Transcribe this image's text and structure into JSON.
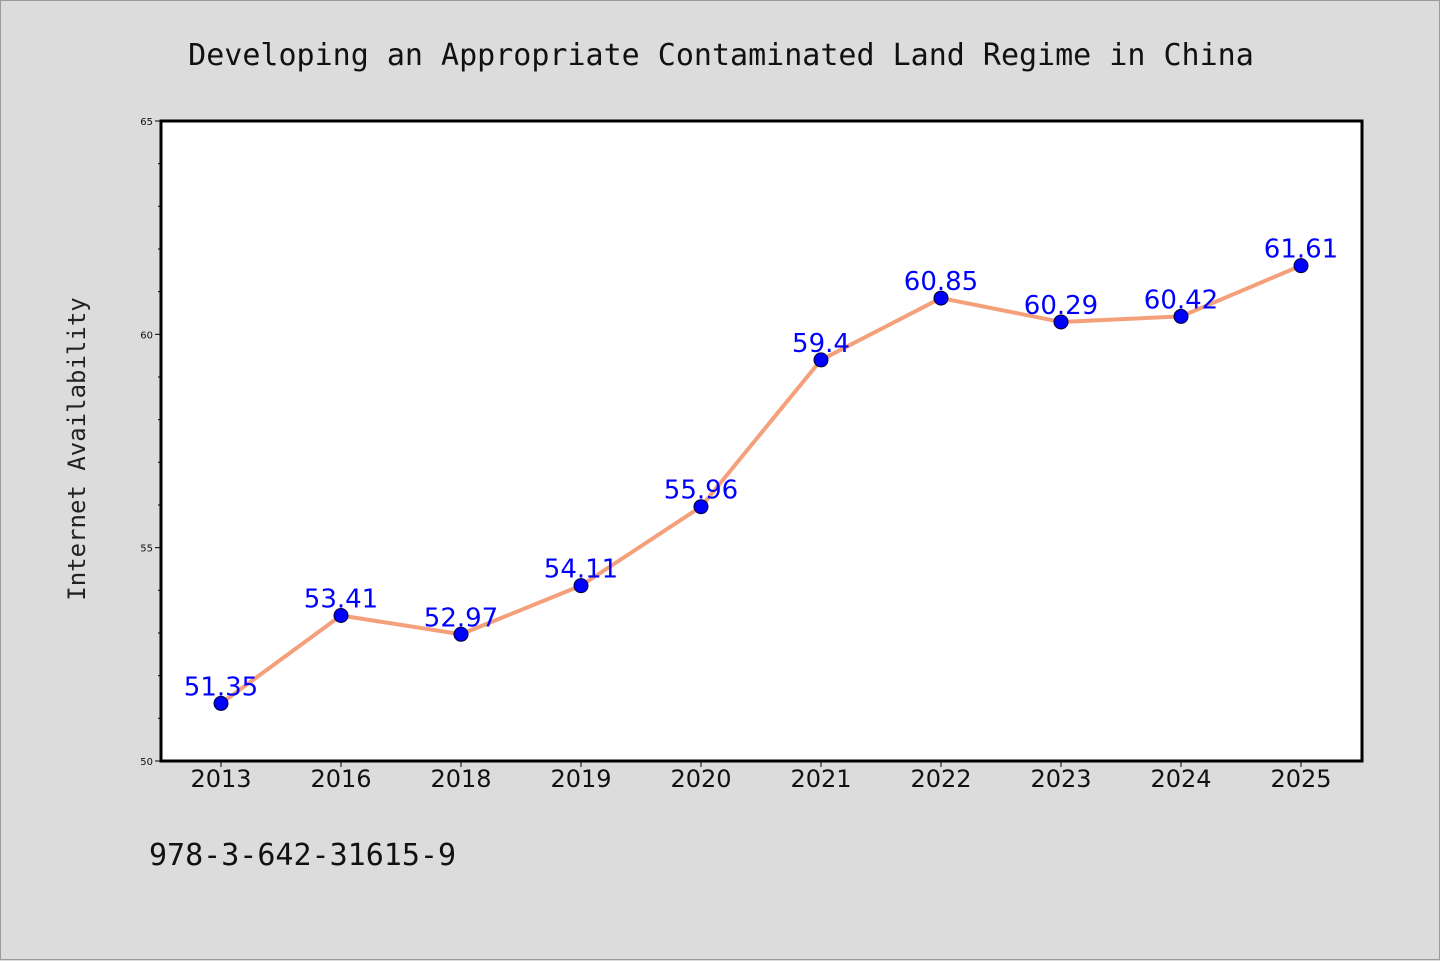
{
  "chart_data": {
    "type": "line",
    "title": "Developing an Appropriate Contaminated Land Regime in China",
    "xlabel": "",
    "ylabel": "Internet Availability",
    "categories": [
      "2013",
      "2016",
      "2018",
      "2019",
      "2020",
      "2021",
      "2022",
      "2023",
      "2024",
      "2025"
    ],
    "series": [
      {
        "values": [
          51.35,
          53.41,
          52.97,
          54.11,
          55.96,
          59.4,
          60.85,
          60.29,
          60.42,
          61.61
        ],
        "labels": [
          "51.35",
          "53.41",
          "52.97",
          "54.11",
          "55.96",
          "59.4",
          "60.85",
          "60.29",
          "60.42",
          "61.61"
        ],
        "line_color": "#f4a07a",
        "marker_color": "#0000ff"
      }
    ],
    "ylim": [
      50,
      65
    ],
    "yticks": [
      50,
      55,
      60,
      65
    ],
    "ytick_labels": [
      "50",
      "55",
      "60",
      "65"
    ],
    "grid": false,
    "legend": "none"
  },
  "footer": {
    "isbn": "978-3-642-31615-9"
  }
}
